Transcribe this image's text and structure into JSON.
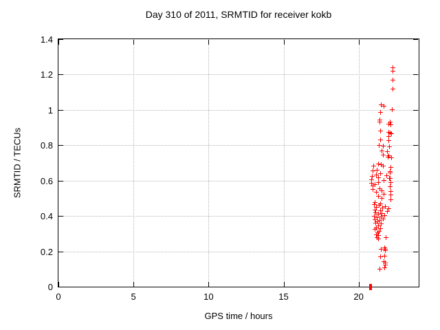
{
  "title": "Day 310 of 2011, SRMTID for receiver kokb",
  "colors": {
    "marker": "#ff0000",
    "grid": "#b5b5b5",
    "axis": "#000000",
    "background": "#ffffff"
  },
  "chart_data": {
    "type": "scatter",
    "title": "Day 310 of 2011, SRMTID for receiver kokb",
    "xlabel": "GPS time / hours",
    "ylabel": "SRMTID / TECUs",
    "xlim": [
      0,
      24
    ],
    "ylim": [
      0,
      1.4
    ],
    "x_ticks": [
      {
        "v": 0,
        "label": "0"
      },
      {
        "v": 5,
        "label": "5"
      },
      {
        "v": 10,
        "label": "10"
      },
      {
        "v": 15,
        "label": "15"
      },
      {
        "v": 20,
        "label": "20"
      }
    ],
    "y_ticks": [
      {
        "v": 0,
        "label": "0"
      },
      {
        "v": 0.2,
        "label": "0.2"
      },
      {
        "v": 0.4,
        "label": "0.4"
      },
      {
        "v": 0.6,
        "label": "0.6"
      },
      {
        "v": 0.8,
        "label": "0.8"
      },
      {
        "v": 1,
        "label": "1"
      },
      {
        "v": 1.2,
        "label": "1.2"
      },
      {
        "v": 1.4,
        "label": "1.4"
      }
    ],
    "grid_x": [
      5,
      10,
      15,
      20
    ],
    "grid_y": [
      0.2,
      0.4,
      0.6,
      0.8,
      1.0,
      1.2
    ],
    "grid": true,
    "legend": "none",
    "marker": "plus",
    "marker_color": "#ff0000",
    "points": [
      [
        22.29,
        1.24
      ],
      [
        22.3,
        1.22
      ],
      [
        22.26,
        1.17
      ],
      [
        22.26,
        1.12
      ],
      [
        22.25,
        1.0
      ],
      [
        22.08,
        0.93
      ],
      [
        22.13,
        0.915
      ],
      [
        22.01,
        0.92
      ],
      [
        21.52,
        1.03
      ],
      [
        21.67,
        1.02
      ],
      [
        21.47,
        0.985
      ],
      [
        21.43,
        0.945
      ],
      [
        21.42,
        0.93
      ],
      [
        21.45,
        0.88
      ],
      [
        22.02,
        0.875
      ],
      [
        22.1,
        0.87
      ],
      [
        22.21,
        0.866
      ],
      [
        21.99,
        0.85
      ],
      [
        22.0,
        0.828
      ],
      [
        21.45,
        0.832
      ],
      [
        21.35,
        0.8
      ],
      [
        21.62,
        0.796
      ],
      [
        22.05,
        0.79
      ],
      [
        21.56,
        0.77
      ],
      [
        21.93,
        0.763
      ],
      [
        21.63,
        0.746
      ],
      [
        22.0,
        0.742
      ],
      [
        22.18,
        0.73
      ],
      [
        21.97,
        0.735
      ],
      [
        21.31,
        0.695
      ],
      [
        21.49,
        0.69
      ],
      [
        21.02,
        0.684
      ],
      [
        21.63,
        0.681
      ],
      [
        22.15,
        0.673
      ],
      [
        21.25,
        0.66
      ],
      [
        20.95,
        0.656
      ],
      [
        22.08,
        0.653
      ],
      [
        21.47,
        0.641
      ],
      [
        22.1,
        0.643
      ],
      [
        21.17,
        0.632
      ],
      [
        21.85,
        0.628
      ],
      [
        20.9,
        0.624
      ],
      [
        21.3,
        0.616
      ],
      [
        22.12,
        0.614
      ],
      [
        22.04,
        0.611
      ],
      [
        20.88,
        0.604
      ],
      [
        21.7,
        0.601
      ],
      [
        21.34,
        0.591
      ],
      [
        22.13,
        0.589
      ],
      [
        20.88,
        0.585
      ],
      [
        21.09,
        0.578
      ],
      [
        20.94,
        0.569
      ],
      [
        22.12,
        0.565
      ],
      [
        21.39,
        0.556
      ],
      [
        20.97,
        0.55
      ],
      [
        21.55,
        0.544
      ],
      [
        22.13,
        0.54
      ],
      [
        21.17,
        0.534
      ],
      [
        21.7,
        0.524
      ],
      [
        22.13,
        0.518
      ],
      [
        21.32,
        0.51
      ],
      [
        21.55,
        0.498
      ],
      [
        22.16,
        0.491
      ],
      [
        21.09,
        0.478
      ],
      [
        21.44,
        0.47
      ],
      [
        21.06,
        0.464
      ],
      [
        21.36,
        0.459
      ],
      [
        21.8,
        0.455
      ],
      [
        21.2,
        0.45
      ],
      [
        21.6,
        0.446
      ],
      [
        21.99,
        0.44
      ],
      [
        21.11,
        0.434
      ],
      [
        21.46,
        0.429
      ],
      [
        21.9,
        0.424
      ],
      [
        21.15,
        0.419
      ],
      [
        21.56,
        0.414
      ],
      [
        21.3,
        0.409
      ],
      [
        21.75,
        0.404
      ],
      [
        21.05,
        0.399
      ],
      [
        21.5,
        0.394
      ],
      [
        21.21,
        0.389
      ],
      [
        21.66,
        0.384
      ],
      [
        21.1,
        0.379
      ],
      [
        21.41,
        0.374
      ],
      [
        21.26,
        0.368
      ],
      [
        21.15,
        0.359
      ],
      [
        21.5,
        0.354
      ],
      [
        21.31,
        0.345
      ],
      [
        21.2,
        0.334
      ],
      [
        21.46,
        0.329
      ],
      [
        21.11,
        0.324
      ],
      [
        21.36,
        0.314
      ],
      [
        21.26,
        0.304
      ],
      [
        21.17,
        0.293
      ],
      [
        21.32,
        0.29
      ],
      [
        21.21,
        0.28
      ],
      [
        21.83,
        0.278
      ],
      [
        21.33,
        0.271
      ],
      [
        21.73,
        0.22
      ],
      [
        21.51,
        0.213
      ],
      [
        21.78,
        0.211
      ],
      [
        21.78,
        0.203
      ],
      [
        21.73,
        0.172
      ],
      [
        21.46,
        0.168
      ],
      [
        21.67,
        0.142
      ],
      [
        21.78,
        0.136
      ],
      [
        21.78,
        0.123
      ],
      [
        21.73,
        0.107
      ],
      [
        21.39,
        0.1
      ]
    ],
    "zero_marker": {
      "x": 20.8,
      "y": 0
    }
  }
}
